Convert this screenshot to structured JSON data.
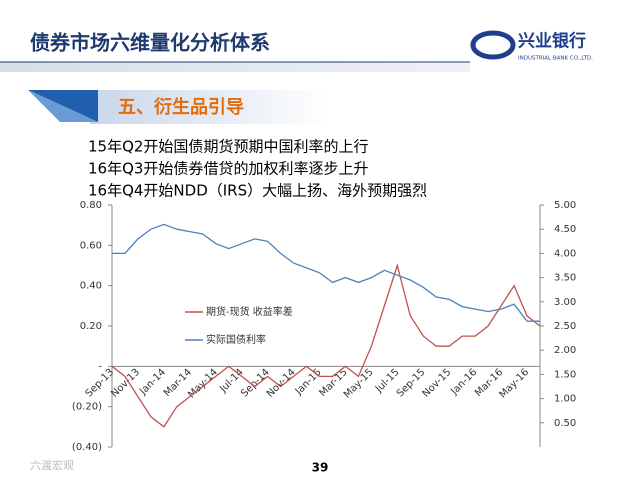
{
  "header": {
    "title": "债券市场六维量化分析体系",
    "logo": "兴业银行",
    "logo_sub": "INDUSTRIAL BANK CO.,LTD."
  },
  "section": "五、衍生品引导",
  "bullets": [
    "15年Q2开始国债期货预期中国利率的上行",
    "16年Q3开始债券借贷的加权利率逐步上升",
    "16年Q4开始NDD（IRS）大幅上扬、海外预期强烈"
  ],
  "chart_data": {
    "type": "line",
    "categories": [
      "Sep-13",
      null,
      "Nov-13",
      null,
      "Jan-14",
      null,
      "Mar-14",
      null,
      "May-14",
      null,
      "Jul-14",
      null,
      "Sep-14",
      null,
      "Nov-14",
      null,
      "Jan-15",
      null,
      "Mar-15",
      null,
      "May-15",
      null,
      "Jul-15",
      null,
      "Sep-15",
      null,
      "Nov-15",
      null,
      "Jan-16",
      null,
      "Mar-16",
      null,
      "May-16",
      null
    ],
    "series": [
      {
        "name": "期货-现货 收益率差",
        "color": "#c0504d",
        "axis": "y",
        "values": [
          0.0,
          -0.05,
          -0.15,
          -0.25,
          -0.3,
          -0.2,
          -0.15,
          -0.1,
          -0.05,
          0.0,
          -0.05,
          -0.1,
          -0.05,
          -0.1,
          -0.05,
          0.0,
          -0.05,
          -0.05,
          0.0,
          -0.05,
          0.1,
          0.3,
          0.5,
          0.25,
          0.15,
          0.1,
          0.1,
          0.15,
          0.15,
          0.2,
          0.3,
          0.4,
          0.25,
          0.2
        ]
      },
      {
        "name": "实际国债利率",
        "color": "#4f81bd",
        "axis": "y2",
        "values": [
          4.0,
          4.0,
          4.3,
          4.5,
          4.6,
          4.5,
          4.45,
          4.4,
          4.2,
          4.1,
          4.2,
          4.3,
          4.25,
          4.0,
          3.8,
          3.7,
          3.6,
          3.4,
          3.5,
          3.4,
          3.5,
          3.65,
          3.55,
          3.45,
          3.3,
          3.1,
          3.05,
          2.9,
          2.85,
          2.8,
          2.85,
          2.95,
          2.6,
          2.6
        ]
      }
    ],
    "ylim": [
      -0.4,
      0.8
    ],
    "yticks": [
      {
        "value": -0.4,
        "label": "(0.40)"
      },
      {
        "value": -0.2,
        "label": "(0.20)"
      },
      {
        "value": 0,
        "label": "-"
      },
      {
        "value": 0.2,
        "label": "0.20"
      },
      {
        "value": 0.4,
        "label": "0.40"
      },
      {
        "value": 0.6,
        "label": "0.60"
      },
      {
        "value": 0.8,
        "label": "0.80"
      }
    ],
    "y2lim": [
      0,
      5
    ],
    "y2ticks": [
      {
        "value": 0.5,
        "label": "0.50"
      },
      {
        "value": 1,
        "label": "1.00"
      },
      {
        "value": 1.5,
        "label": "1.50"
      },
      {
        "value": 2,
        "label": "2.00"
      },
      {
        "value": 2.5,
        "label": "2.50"
      },
      {
        "value": 3,
        "label": "3.00"
      },
      {
        "value": 3.5,
        "label": "3.50"
      },
      {
        "value": 4,
        "label": "4.00"
      },
      {
        "value": 4.5,
        "label": "4.50"
      },
      {
        "value": 5,
        "label": "5.00"
      }
    ],
    "legend": "center-left"
  },
  "page_number": "39",
  "watermark": "六渡宏观"
}
